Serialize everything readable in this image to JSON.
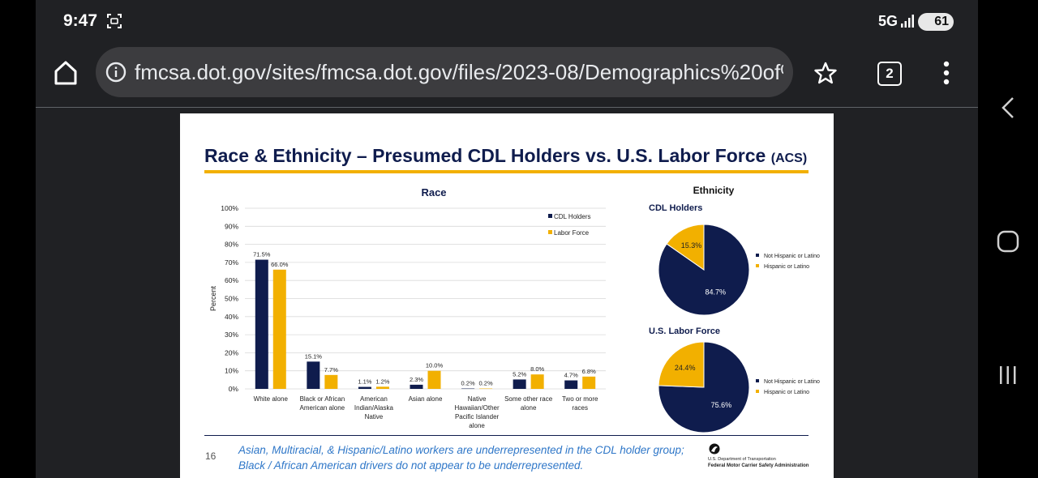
{
  "status": {
    "time": "9:47",
    "network": "5G",
    "battery": "61"
  },
  "browser": {
    "url": "fmcsa.dot.gov/sites/fmcsa.dot.gov/files/2023-08/Demographics%20of%",
    "tab_count": "2"
  },
  "slide": {
    "title": "Race & Ethnicity – Presumed CDL Holders vs. U.S. Labor Force",
    "title_suffix": "(ACS)",
    "page_number": "16",
    "footer_line1": "Asian, Multiracial, & Hispanic/Latino workers are underrepresented in the CDL holder group;",
    "footer_line2": "Black / African American drivers do not appear to be underrepresented.",
    "agency_dept": "U.S. Department of Transportation",
    "agency_name": "Federal Motor Carrier Safety Administration"
  },
  "colors": {
    "cdl": "#0f1c4d",
    "labor": "#f2b000",
    "accent": "#f2b000"
  },
  "chart_data": [
    {
      "type": "bar",
      "title": "Race",
      "ylabel": "Percent",
      "xlabel": "",
      "ylim": [
        0,
        100
      ],
      "yticks": [
        "0%",
        "10%",
        "20%",
        "30%",
        "40%",
        "50%",
        "60%",
        "70%",
        "80%",
        "90%",
        "100%"
      ],
      "categories": [
        [
          "White alone"
        ],
        [
          "Black or African",
          "American alone"
        ],
        [
          "American",
          "Indian/Alaska",
          "Native"
        ],
        [
          "Asian alone"
        ],
        [
          "Native",
          "Hawaiian/Other",
          "Pacific Islander",
          "alone"
        ],
        [
          "Some other race",
          "alone"
        ],
        [
          "Two or more",
          "races"
        ]
      ],
      "series": [
        {
          "name": "CDL Holders",
          "values": [
            71.5,
            15.1,
            1.1,
            2.3,
            0.2,
            5.2,
            4.7
          ],
          "labels": [
            "71.5%",
            "15.1%",
            "1.1%",
            "2.3%",
            "0.2%",
            "5.2%",
            "4.7%"
          ]
        },
        {
          "name": "Labor Force",
          "values": [
            66.0,
            7.7,
            1.2,
            10.0,
            0.2,
            8.0,
            6.8
          ],
          "labels": [
            "66.0%",
            "7.7%",
            "1.2%",
            "10.0%",
            "0.2%",
            "8.0%",
            "6.8%"
          ]
        }
      ],
      "legend": "top-right",
      "grid": true
    },
    {
      "type": "pie",
      "title": "Ethnicity",
      "subtitle": "CDL Holders",
      "slices": [
        {
          "label": "Not Hispanic or Latino",
          "value": 84.7,
          "text": "84.7%"
        },
        {
          "label": "Hispanic or Latino",
          "value": 15.3,
          "text": "15.3%"
        }
      ]
    },
    {
      "type": "pie",
      "title": "",
      "subtitle": "U.S. Labor Force",
      "slices": [
        {
          "label": "Not Hispanic or Latino",
          "value": 75.6,
          "text": "75.6%"
        },
        {
          "label": "Hispanic or Latino",
          "value": 24.4,
          "text": "24.4%"
        }
      ]
    }
  ]
}
